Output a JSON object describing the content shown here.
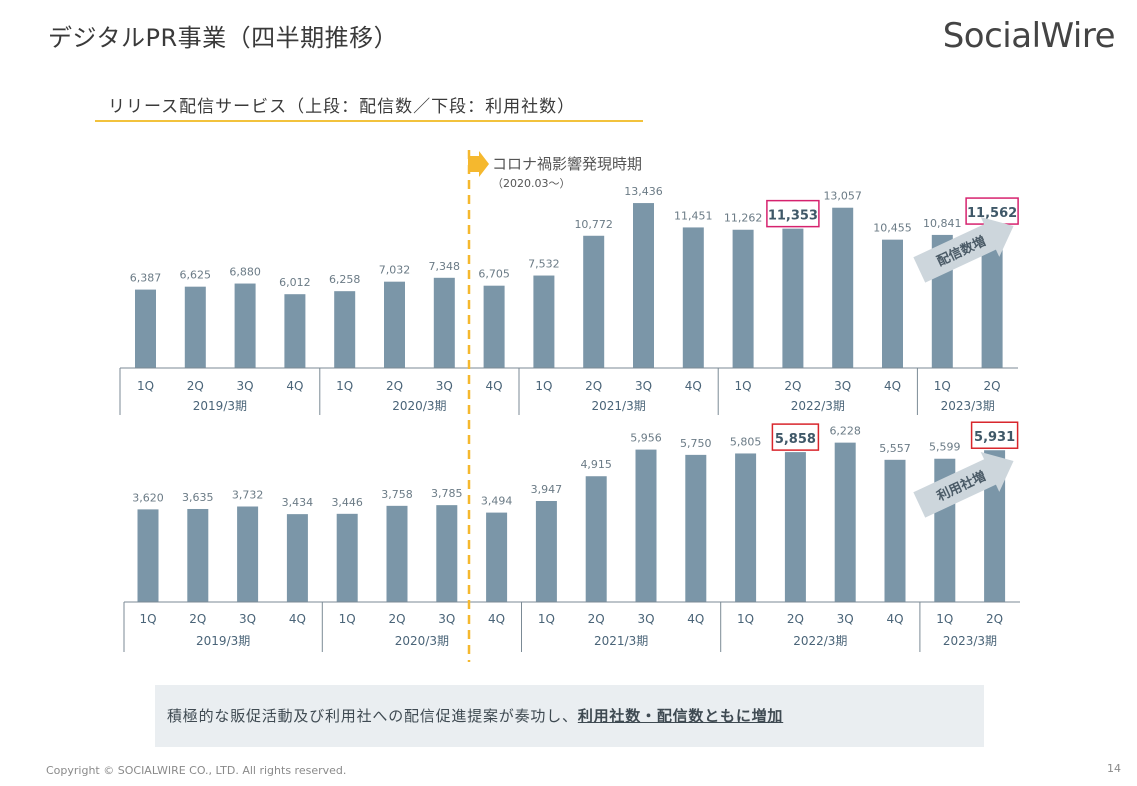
{
  "header": {
    "title": "デジタルPR事業（四半期推移）",
    "logo": "SocialWire"
  },
  "subtitle": "リリース配信サービス（上段：配信数／下段：利用社数）",
  "colors": {
    "bar": "#7b96a8",
    "highlight_border": "#d6226e",
    "highlight_border_lower": "#d8252b",
    "marker_line": "#f5b82e",
    "arrow": "#cdd6dc",
    "axis": "#7b8a95"
  },
  "marker": {
    "label": "コロナ禍影響発現時期",
    "sublabel": "（2020.03〜）"
  },
  "chart_data": [
    {
      "type": "bar",
      "name": "配信数",
      "categories": [
        "1Q",
        "2Q",
        "3Q",
        "4Q",
        "1Q",
        "2Q",
        "3Q",
        "4Q",
        "1Q",
        "2Q",
        "3Q",
        "4Q",
        "1Q",
        "2Q",
        "3Q",
        "4Q",
        "1Q",
        "2Q"
      ],
      "values": [
        6387,
        6625,
        6880,
        6012,
        6258,
        7032,
        7348,
        6705,
        7532,
        10772,
        13436,
        11451,
        11262,
        11353,
        13057,
        10455,
        10841,
        11562
      ],
      "value_labels": [
        "6,387",
        "6,625",
        "6,880",
        "6,012",
        "6,258",
        "7,032",
        "7,348",
        "6,705",
        "7,532",
        "10,772",
        "13,436",
        "11,451",
        "11,262",
        "11,353",
        "13,057",
        "10,455",
        "10,841",
        "11,562"
      ],
      "highlight_indices": [
        13,
        17
      ],
      "groups": [
        {
          "label": "2019/3期",
          "count": 4
        },
        {
          "label": "2020/3期",
          "count": 4
        },
        {
          "label": "2021/3期",
          "count": 4
        },
        {
          "label": "2022/3期",
          "count": 4
        },
        {
          "label": "2023/3期",
          "count": 2
        }
      ],
      "trend_label": "配信数増",
      "ylim": [
        0,
        14500
      ]
    },
    {
      "type": "bar",
      "name": "利用社数",
      "categories": [
        "1Q",
        "2Q",
        "3Q",
        "4Q",
        "1Q",
        "2Q",
        "3Q",
        "4Q",
        "1Q",
        "2Q",
        "3Q",
        "4Q",
        "1Q",
        "2Q",
        "3Q",
        "4Q",
        "1Q",
        "2Q"
      ],
      "values": [
        3620,
        3635,
        3732,
        3434,
        3446,
        3758,
        3785,
        3494,
        3947,
        4915,
        5956,
        5750,
        5805,
        5858,
        6228,
        5557,
        5599,
        5931
      ],
      "value_labels": [
        "3,620",
        "3,635",
        "3,732",
        "3,434",
        "3,446",
        "3,758",
        "3,785",
        "3,494",
        "3,947",
        "4,915",
        "5,956",
        "5,750",
        "5,805",
        "5,858",
        "6,228",
        "5,557",
        "5,599",
        "5,931"
      ],
      "highlight_indices": [
        13,
        17
      ],
      "groups": [
        {
          "label": "2019/3期",
          "count": 4
        },
        {
          "label": "2020/3期",
          "count": 4
        },
        {
          "label": "2021/3期",
          "count": 4
        },
        {
          "label": "2022/3期",
          "count": 4
        },
        {
          "label": "2023/3期",
          "count": 2
        }
      ],
      "trend_label": "利用社増",
      "ylim": [
        0,
        6800
      ]
    }
  ],
  "note": {
    "prefix": "積極的な販促活動及び利用社への配信促進提案が奏功し、",
    "emphasis": "利用社数・配信数ともに増加"
  },
  "footer": {
    "copyright": "Copyright © SOCIALWIRE CO., LTD. All rights reserved.",
    "page_number": "14"
  }
}
